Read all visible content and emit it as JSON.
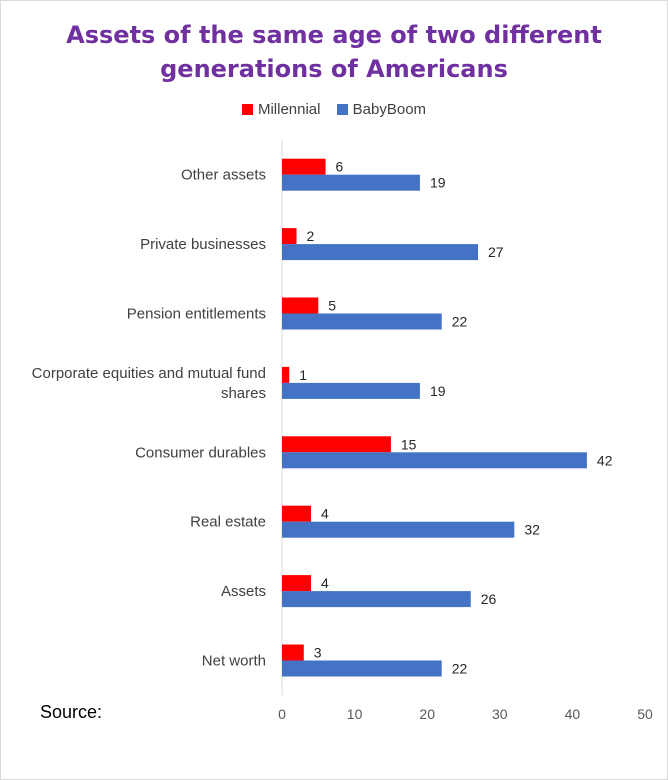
{
  "chart_data": {
    "type": "bar",
    "orientation": "horizontal",
    "title": "Assets of the same age of two different generations of Americans",
    "title_lines": [
      "Assets of the same age of two different",
      "generations of Americans"
    ],
    "categories": [
      "Other assets",
      "Private businesses",
      "Pension entitlements",
      "Corporate equities and mutual fund shares",
      "Consumer durables",
      "Real estate",
      "Assets",
      "Net worth"
    ],
    "category_lines": [
      [
        "Other assets"
      ],
      [
        "Private businesses"
      ],
      [
        "Pension entitlements"
      ],
      [
        "Corporate equities and mutual fund",
        "shares"
      ],
      [
        "Consumer durables"
      ],
      [
        "Real estate"
      ],
      [
        "Assets"
      ],
      [
        "Net worth"
      ]
    ],
    "series": [
      {
        "name": "Millennial",
        "color": "#ff0000",
        "values": [
          6,
          2,
          5,
          1,
          15,
          4,
          4,
          3
        ]
      },
      {
        "name": "BabyBoom",
        "color": "#4472c4",
        "values": [
          19,
          27,
          22,
          19,
          42,
          32,
          26,
          22
        ]
      }
    ],
    "xlim": [
      0,
      50
    ],
    "xticks": [
      0,
      10,
      20,
      30,
      40,
      50
    ],
    "xlabel": "",
    "ylabel": "",
    "grid": false,
    "legend_position": "top",
    "data_labels": true
  },
  "footer": {
    "source_label": "Source:"
  }
}
